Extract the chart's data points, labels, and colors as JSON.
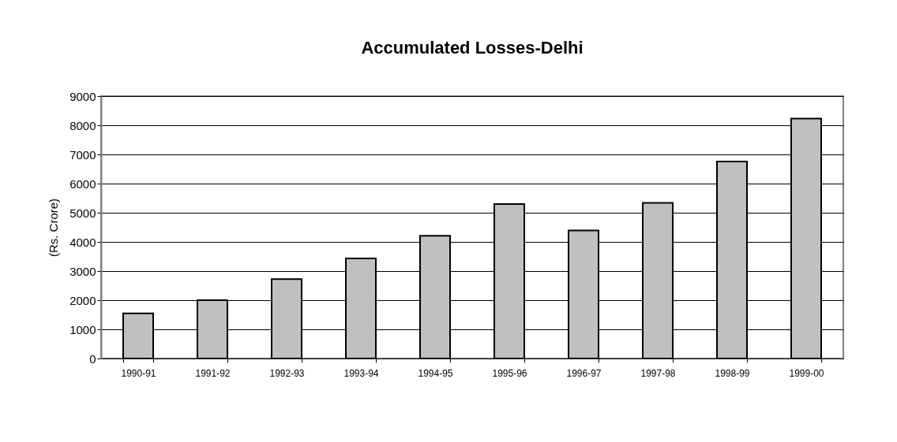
{
  "chart_data": {
    "type": "bar",
    "title": "Accumulated Losses-Delhi",
    "ylabel": "(Rs. Crore)",
    "categories": [
      "1990-91",
      "1991-92",
      "1992-93",
      "1993-94",
      "1994-95",
      "1995-96",
      "1996-97",
      "1997-98",
      "1998-99",
      "1999-00"
    ],
    "values": [
      1550,
      2000,
      2720,
      3430,
      4210,
      5300,
      4390,
      5340,
      6760,
      8230
    ],
    "color": "#c0c0c0",
    "ylim": [
      0,
      9000
    ],
    "yticks": [
      0,
      1000,
      2000,
      3000,
      4000,
      5000,
      6000,
      7000,
      8000,
      9000
    ],
    "grid": "y"
  }
}
